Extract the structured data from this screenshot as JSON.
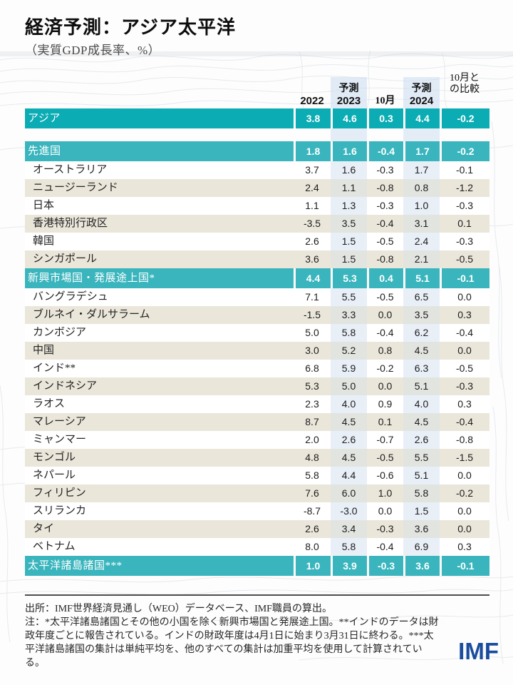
{
  "page": {
    "title": "経済予測：アジア太平洋",
    "subtitle": "（実質GDP成長率、%）"
  },
  "table": {
    "headers": {
      "y2022": "2022",
      "forecast2023_label": "予測",
      "y2023": "2023",
      "oct": "10月",
      "forecast2024_label": "予測",
      "y2024": "2024",
      "diff_line1": "10月と",
      "diff_line2": "の比較"
    },
    "rows": [
      {
        "label": "アジア",
        "type": "total",
        "tone": "dark",
        "gapAfter": true,
        "values": [
          "3.8",
          "4.6",
          "0.3",
          "4.4",
          "-0.2"
        ]
      },
      {
        "label": "先進国",
        "type": "total",
        "tone": "light",
        "values": [
          "1.8",
          "1.6",
          "-0.4",
          "1.7",
          "-0.2"
        ]
      },
      {
        "label": "オーストラリア",
        "type": "country",
        "values": [
          "3.7",
          "1.6",
          "-0.3",
          "1.7",
          "-0.1"
        ]
      },
      {
        "label": "ニュージーランド",
        "type": "country",
        "values": [
          "2.4",
          "1.1",
          "-0.8",
          "0.8",
          "-1.2"
        ]
      },
      {
        "label": "日本",
        "type": "country",
        "values": [
          "1.1",
          "1.3",
          "-0.3",
          "1.0",
          "-0.3"
        ]
      },
      {
        "label": "香港特別行政区",
        "type": "country",
        "values": [
          "-3.5",
          "3.5",
          "-0.4",
          "3.1",
          "0.1"
        ]
      },
      {
        "label": "韓国",
        "type": "country",
        "values": [
          "2.6",
          "1.5",
          "-0.5",
          "2.4",
          "-0.3"
        ]
      },
      {
        "label": "シンガポール",
        "type": "country",
        "values": [
          "3.6",
          "1.5",
          "-0.8",
          "2.1",
          "-0.5"
        ]
      },
      {
        "label": "新興市場国・発展途上国*",
        "type": "total",
        "tone": "light",
        "values": [
          "4.4",
          "5.3",
          "0.4",
          "5.1",
          "-0.1"
        ]
      },
      {
        "label": "バングラデシュ",
        "type": "country",
        "values": [
          "7.1",
          "5.5",
          "-0.5",
          "6.5",
          "0.0"
        ]
      },
      {
        "label": "ブルネイ・ダルサラーム",
        "type": "country",
        "values": [
          "-1.5",
          "3.3",
          "0.0",
          "3.5",
          "0.3"
        ]
      },
      {
        "label": "カンボジア",
        "type": "country",
        "values": [
          "5.0",
          "5.8",
          "-0.4",
          "6.2",
          "-0.4"
        ]
      },
      {
        "label": "中国",
        "type": "country",
        "values": [
          "3.0",
          "5.2",
          "0.8",
          "4.5",
          "0.0"
        ]
      },
      {
        "label": "インド**",
        "type": "country",
        "values": [
          "6.8",
          "5.9",
          "-0.2",
          "6.3",
          "-0.5"
        ]
      },
      {
        "label": "インドネシア",
        "type": "country",
        "values": [
          "5.3",
          "5.0",
          "0.0",
          "5.1",
          "-0.3"
        ]
      },
      {
        "label": "ラオス",
        "type": "country",
        "values": [
          "2.3",
          "4.0",
          "0.9",
          "4.0",
          "0.3"
        ]
      },
      {
        "label": "マレーシア",
        "type": "country",
        "values": [
          "8.7",
          "4.5",
          "0.1",
          "4.5",
          "-0.4"
        ]
      },
      {
        "label": "ミャンマー",
        "type": "country",
        "values": [
          "2.0",
          "2.6",
          "-0.7",
          "2.6",
          "-0.8"
        ]
      },
      {
        "label": "モンゴル",
        "type": "country",
        "values": [
          "4.8",
          "4.5",
          "-0.5",
          "5.5",
          "-1.5"
        ]
      },
      {
        "label": "ネパール",
        "type": "country",
        "values": [
          "5.8",
          "4.4",
          "-0.6",
          "5.1",
          "0.0"
        ]
      },
      {
        "label": "フィリピン",
        "type": "country",
        "values": [
          "7.6",
          "6.0",
          "1.0",
          "5.8",
          "-0.2"
        ]
      },
      {
        "label": "スリランカ",
        "type": "country",
        "values": [
          "-8.7",
          "-3.0",
          "0.0",
          "1.5",
          "0.0"
        ]
      },
      {
        "label": "タイ",
        "type": "country",
        "values": [
          "2.6",
          "3.4",
          "-0.3",
          "3.6",
          "0.0"
        ]
      },
      {
        "label": "ベトナム",
        "type": "country",
        "values": [
          "8.0",
          "5.8",
          "-0.4",
          "6.9",
          "0.3"
        ]
      },
      {
        "label": "太平洋諸島諸国***",
        "type": "total",
        "tone": "light",
        "values": [
          "1.0",
          "3.9",
          "-0.3",
          "3.6",
          "-0.1"
        ]
      }
    ]
  },
  "footer": {
    "source": "出所：IMF世界経済見通し（WEO）データベース、IMF職員の算出。",
    "note": "注：*太平洋諸島諸国とその他の小国を除く新興市場国と発展途上国。**インドのデータは財政年度ごとに報告されている。インドの財政年度は4月1日に始まり3月31日に終わる。***太平洋諸島諸国の集計は単純平均を、他のすべての集計は加重平均を使用して計算されている。",
    "logo_text": "IMF"
  },
  "colors": {
    "teal_primary": "#0CACB4",
    "teal_secondary": "#3AB5BD",
    "stripe_beige": "#EAE6DA",
    "forecast_highlight_on_white": "#E9EFF7",
    "forecast_highlight_on_beige": "#E2E4E0",
    "imf_logo_blue": "#1A4C9E"
  },
  "chart_data": {
    "type": "table",
    "title": "経済予測：アジア太平洋",
    "subtitle": "（実質GDP成長率、%）",
    "columns": [
      "2022",
      "予測 2023",
      "10月",
      "予測 2024",
      "10月との比較"
    ],
    "rows": [
      {
        "label": "アジア",
        "aggregate": true,
        "values": [
          3.8,
          4.6,
          0.3,
          4.4,
          -0.2
        ]
      },
      {
        "label": "先進国",
        "aggregate": true,
        "values": [
          1.8,
          1.6,
          -0.4,
          1.7,
          -0.2
        ]
      },
      {
        "label": "オーストラリア",
        "aggregate": false,
        "values": [
          3.7,
          1.6,
          -0.3,
          1.7,
          -0.1
        ]
      },
      {
        "label": "ニュージーランド",
        "aggregate": false,
        "values": [
          2.4,
          1.1,
          -0.8,
          0.8,
          -1.2
        ]
      },
      {
        "label": "日本",
        "aggregate": false,
        "values": [
          1.1,
          1.3,
          -0.3,
          1.0,
          -0.3
        ]
      },
      {
        "label": "香港特別行政区",
        "aggregate": false,
        "values": [
          -3.5,
          3.5,
          -0.4,
          3.1,
          0.1
        ]
      },
      {
        "label": "韓国",
        "aggregate": false,
        "values": [
          2.6,
          1.5,
          -0.5,
          2.4,
          -0.3
        ]
      },
      {
        "label": "シンガポール",
        "aggregate": false,
        "values": [
          3.6,
          1.5,
          -0.8,
          2.1,
          -0.5
        ]
      },
      {
        "label": "新興市場国・発展途上国*",
        "aggregate": true,
        "values": [
          4.4,
          5.3,
          0.4,
          5.1,
          -0.1
        ]
      },
      {
        "label": "バングラデシュ",
        "aggregate": false,
        "values": [
          7.1,
          5.5,
          -0.5,
          6.5,
          0.0
        ]
      },
      {
        "label": "ブルネイ・ダルサラーム",
        "aggregate": false,
        "values": [
          -1.5,
          3.3,
          0.0,
          3.5,
          0.3
        ]
      },
      {
        "label": "カンボジア",
        "aggregate": false,
        "values": [
          5.0,
          5.8,
          -0.4,
          6.2,
          -0.4
        ]
      },
      {
        "label": "中国",
        "aggregate": false,
        "values": [
          3.0,
          5.2,
          0.8,
          4.5,
          0.0
        ]
      },
      {
        "label": "インド**",
        "aggregate": false,
        "values": [
          6.8,
          5.9,
          -0.2,
          6.3,
          -0.5
        ]
      },
      {
        "label": "インドネシア",
        "aggregate": false,
        "values": [
          5.3,
          5.0,
          0.0,
          5.1,
          -0.3
        ]
      },
      {
        "label": "ラオス",
        "aggregate": false,
        "values": [
          2.3,
          4.0,
          0.9,
          4.0,
          0.3
        ]
      },
      {
        "label": "マレーシア",
        "aggregate": false,
        "values": [
          8.7,
          4.5,
          0.1,
          4.5,
          -0.4
        ]
      },
      {
        "label": "ミャンマー",
        "aggregate": false,
        "values": [
          2.0,
          2.6,
          -0.7,
          2.6,
          -0.8
        ]
      },
      {
        "label": "モンゴル",
        "aggregate": false,
        "values": [
          4.8,
          4.5,
          -0.5,
          5.5,
          -1.5
        ]
      },
      {
        "label": "ネパール",
        "aggregate": false,
        "values": [
          5.8,
          4.4,
          -0.6,
          5.1,
          0.0
        ]
      },
      {
        "label": "フィリピン",
        "aggregate": false,
        "values": [
          7.6,
          6.0,
          1.0,
          5.8,
          -0.2
        ]
      },
      {
        "label": "スリランカ",
        "aggregate": false,
        "values": [
          -8.7,
          -3.0,
          0.0,
          1.5,
          0.0
        ]
      },
      {
        "label": "タイ",
        "aggregate": false,
        "values": [
          2.6,
          3.4,
          -0.3,
          3.6,
          0.0
        ]
      },
      {
        "label": "ベトナム",
        "aggregate": false,
        "values": [
          8.0,
          5.8,
          -0.4,
          6.9,
          0.3
        ]
      },
      {
        "label": "太平洋諸島諸国***",
        "aggregate": true,
        "values": [
          1.0,
          3.9,
          -0.3,
          3.6,
          -0.1
        ]
      }
    ]
  }
}
